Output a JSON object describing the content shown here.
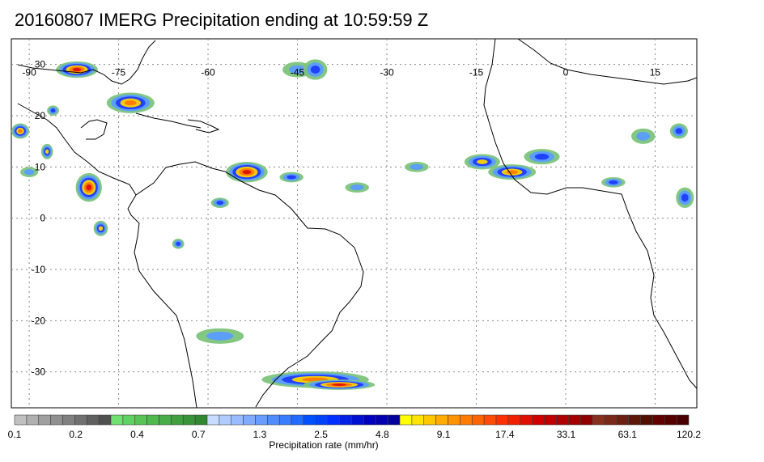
{
  "title": "20160807 IMERG Precipitation ending at 10:59:59 Z",
  "map": {
    "lon_range": [
      -93,
      22
    ],
    "lat_range": [
      -37,
      35
    ],
    "lon_ticks": [
      {
        "value": -90,
        "label": "-90"
      },
      {
        "value": -75,
        "label": "-75"
      },
      {
        "value": -60,
        "label": "-60"
      },
      {
        "value": -45,
        "label": "-45"
      },
      {
        "value": -30,
        "label": "-30"
      },
      {
        "value": -15,
        "label": "-15"
      },
      {
        "value": 0,
        "label": "0"
      },
      {
        "value": 15,
        "label": "15"
      }
    ],
    "lat_ticks": [
      {
        "value": 30,
        "label": "30"
      },
      {
        "value": 20,
        "label": "20"
      },
      {
        "value": 10,
        "label": "10"
      },
      {
        "value": 0,
        "label": "0"
      },
      {
        "value": -10,
        "label": "-10"
      },
      {
        "value": -20,
        "label": "-20"
      },
      {
        "value": -30,
        "label": "-30"
      }
    ],
    "gridlines": true,
    "coastline_color": "#000000",
    "grid_color": "#888888"
  },
  "precip_cells": [
    {
      "lon": -82,
      "lat": 29,
      "rx": 3.5,
      "ry": 1.6,
      "level": 5
    },
    {
      "lon": -73,
      "lat": 22.5,
      "rx": 4,
      "ry": 2,
      "level": 4
    },
    {
      "lon": -91.5,
      "lat": 17,
      "rx": 1.5,
      "ry": 1.5,
      "level": 4
    },
    {
      "lon": -80,
      "lat": 6,
      "rx": 2.2,
      "ry": 2.8,
      "level": 5
    },
    {
      "lon": -78,
      "lat": -2,
      "rx": 1.2,
      "ry": 1.5,
      "level": 3
    },
    {
      "lon": -53.5,
      "lat": 9,
      "rx": 3.5,
      "ry": 2,
      "level": 5
    },
    {
      "lon": -46,
      "lat": 8,
      "rx": 2,
      "ry": 1,
      "level": 2
    },
    {
      "lon": -45,
      "lat": 29,
      "rx": 2.5,
      "ry": 1.5,
      "level": 1
    },
    {
      "lon": -42,
      "lat": 29,
      "rx": 2,
      "ry": 2,
      "level": 2
    },
    {
      "lon": -14,
      "lat": 11,
      "rx": 3,
      "ry": 1.5,
      "level": 3
    },
    {
      "lon": -9,
      "lat": 9,
      "rx": 4,
      "ry": 1.5,
      "level": 4
    },
    {
      "lon": -4,
      "lat": 12,
      "rx": 3,
      "ry": 1.5,
      "level": 2
    },
    {
      "lon": 8,
      "lat": 7,
      "rx": 2,
      "ry": 1,
      "level": 2
    },
    {
      "lon": 13,
      "lat": 16,
      "rx": 2,
      "ry": 1.5,
      "level": 1
    },
    {
      "lon": 19,
      "lat": 17,
      "rx": 1.5,
      "ry": 1.5,
      "level": 2
    },
    {
      "lon": 20,
      "lat": 4,
      "rx": 1.5,
      "ry": 2,
      "level": 2
    },
    {
      "lon": -58,
      "lat": -23,
      "rx": 4,
      "ry": 1.5,
      "level": 1
    },
    {
      "lon": -42,
      "lat": -31.5,
      "rx": 9,
      "ry": 1.6,
      "level": 4
    },
    {
      "lon": -38,
      "lat": -32.5,
      "rx": 6,
      "ry": 1,
      "level": 5
    },
    {
      "lon": -65,
      "lat": -5,
      "rx": 1,
      "ry": 1,
      "level": 2
    },
    {
      "lon": -58,
      "lat": 3,
      "rx": 1.5,
      "ry": 1,
      "level": 2
    },
    {
      "lon": -35,
      "lat": 6,
      "rx": 2,
      "ry": 1,
      "level": 1
    },
    {
      "lon": -25,
      "lat": 10,
      "rx": 2,
      "ry": 1,
      "level": 1
    },
    {
      "lon": -86,
      "lat": 21,
      "rx": 1,
      "ry": 1,
      "level": 2
    },
    {
      "lon": -90,
      "lat": 9,
      "rx": 1.5,
      "ry": 1,
      "level": 1
    },
    {
      "lon": -87,
      "lat": 13,
      "rx": 1,
      "ry": 1.5,
      "level": 3
    }
  ],
  "colorbar": {
    "title": "Precipitation rate (mm/hr)",
    "colors": [
      "#c0c0c0",
      "#b0b0b0",
      "#a0a0a0",
      "#909090",
      "#808080",
      "#707070",
      "#606060",
      "#505050",
      "#70e070",
      "#62d062",
      "#58c458",
      "#4fb84f",
      "#48ac48",
      "#40a040",
      "#389438",
      "#308830",
      "#c8dcff",
      "#b0ccff",
      "#98bcff",
      "#80acff",
      "#689cff",
      "#508cff",
      "#387cff",
      "#206cff",
      "#0050ff",
      "#0040ff",
      "#0030ff",
      "#0020e8",
      "#0010d0",
      "#0000c0",
      "#0000b0",
      "#0000a0",
      "#ffff00",
      "#ffe400",
      "#ffc800",
      "#ffac00",
      "#ff9400",
      "#ff7c00",
      "#ff6400",
      "#ff4c00",
      "#ff3000",
      "#f02000",
      "#e01000",
      "#d00000",
      "#c00000",
      "#b00000",
      "#a00000",
      "#900000",
      "#883020",
      "#7a2818",
      "#6c2010",
      "#5e1808",
      "#501000",
      "#600000",
      "#540000",
      "#480000"
    ],
    "labels": [
      "0.1",
      "0.2",
      "0.4",
      "0.7",
      "1.3",
      "2.5",
      "4.8",
      "9.1",
      "17.4",
      "33.1",
      "63.1",
      "120.2"
    ]
  }
}
